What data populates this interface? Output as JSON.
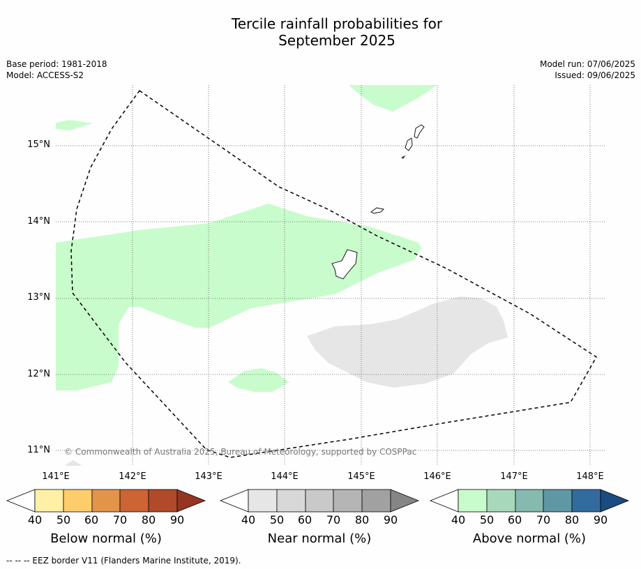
{
  "title_line1": "Tercile rainfall probabilities for",
  "title_line2": "September 2025",
  "base_period": "Base period: 1981-2018",
  "model": "Model: ACCESS-S2",
  "model_run": "Model run: 07/06/2025",
  "issued": "Issued: 09/06/2025",
  "lat_labels": [
    "15°N",
    "14°N",
    "13°N",
    "12°N",
    "11°N"
  ],
  "lon_labels": [
    "141°E",
    "142°E",
    "143°E",
    "144°E",
    "145°E",
    "146°E",
    "147°E",
    "148°E"
  ],
  "copyright": "© Commonwealth of Australia 2025, Bureau of Meteorology, supported by COSPPac",
  "colorbars": [
    {
      "title": "Below normal (%)",
      "ticks": [
        "40",
        "50",
        "60",
        "70",
        "80",
        "90"
      ],
      "colors": [
        "#fff0a6",
        "#fdcd6b",
        "#e2954a",
        "#cd6434",
        "#b04a2a",
        "#963522"
      ]
    },
    {
      "title": "Near normal (%)",
      "ticks": [
        "40",
        "50",
        "60",
        "70",
        "80",
        "90"
      ],
      "colors": [
        "#e6e6e6",
        "#d8d8d8",
        "#c9c9c9",
        "#b5b5b5",
        "#a1a1a1",
        "#858585"
      ]
    },
    {
      "title": "Above normal (%)",
      "ticks": [
        "40",
        "50",
        "60",
        "70",
        "80",
        "90"
      ],
      "colors": [
        "#c9fccc",
        "#a7d8bc",
        "#86b9b0",
        "#5f97a4",
        "#336b9e",
        "#194c82"
      ]
    }
  ],
  "footnote": "--  --  -- EEZ border V11 (Flanders Marine Institute, 2019).",
  "colors": {
    "above_normal_40": "#c9fccc",
    "near_normal_40": "#e6e6e6"
  }
}
